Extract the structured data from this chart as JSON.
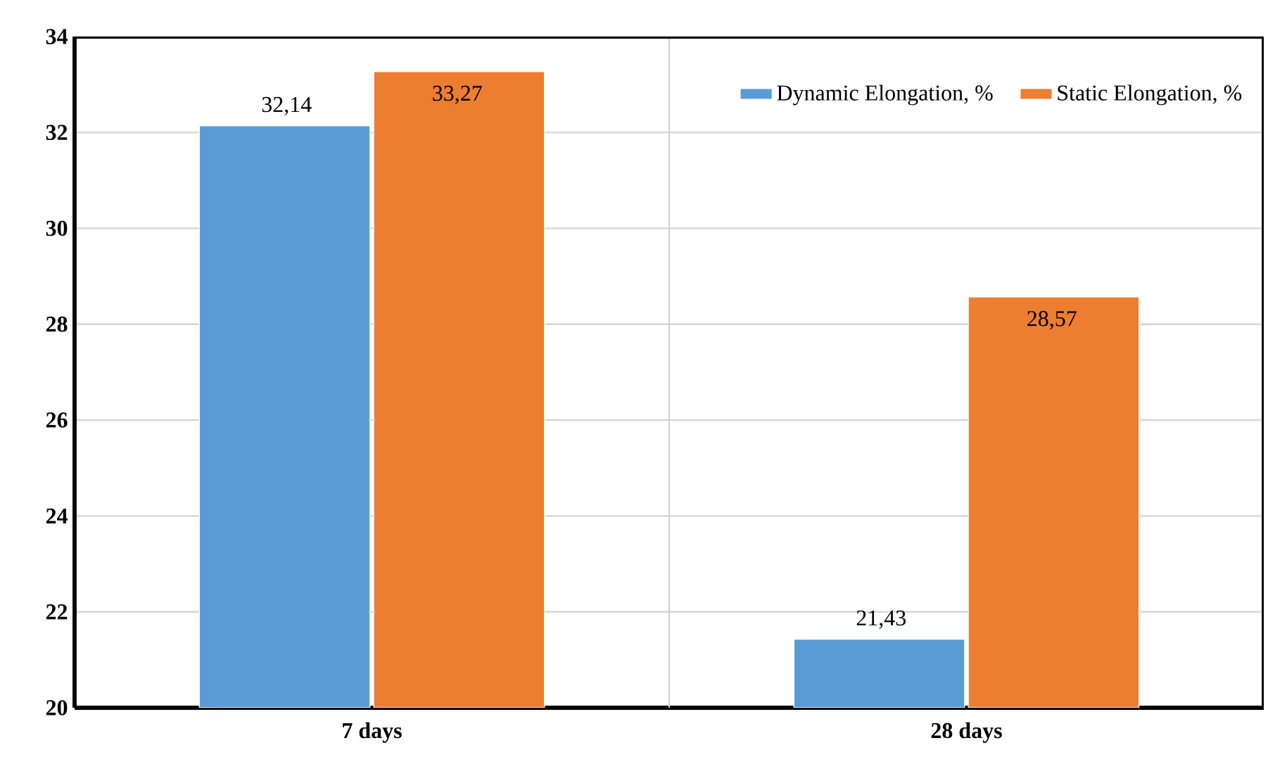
{
  "chart_data": {
    "type": "bar",
    "categories": [
      "7 days",
      "28 days"
    ],
    "series": [
      {
        "name": "Dynamic Elongation, %",
        "color": "#5b9bd5",
        "values": [
          32.14,
          21.43
        ],
        "value_labels": [
          "32,14",
          "21,43"
        ]
      },
      {
        "name": "Static Elongation, %",
        "color": "#ed7d31",
        "values": [
          33.27,
          28.57
        ],
        "value_labels": [
          "33,27",
          "28,57"
        ]
      }
    ],
    "ylim": [
      20,
      34
    ],
    "yticks": [
      20,
      22,
      24,
      26,
      28,
      30,
      32,
      34
    ],
    "grid": true,
    "legend": "top right"
  }
}
